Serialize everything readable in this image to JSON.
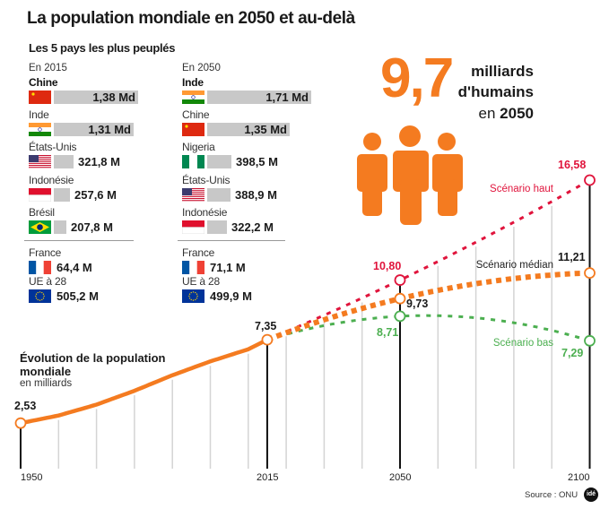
{
  "title": "La population mondiale en 2050 et au-delà",
  "subtitle": "Les 5 pays les plus peuplés",
  "col2015": {
    "heading": "En 2015",
    "countries": [
      {
        "name": "Chine",
        "value": "1,38 Md",
        "millions": 1380,
        "flag": "china"
      },
      {
        "name": "Inde",
        "value": "1,31 Md",
        "millions": 1310,
        "flag": "india"
      },
      {
        "name": "États-Unis",
        "value": "321,8 M",
        "millions": 321.8,
        "flag": "usa"
      },
      {
        "name": "Indonésie",
        "value": "257,6 M",
        "millions": 257.6,
        "flag": "indonesia"
      },
      {
        "name": "Brésil",
        "value": "207,8 M",
        "millions": 207.8,
        "flag": "brazil"
      }
    ],
    "france": {
      "name": "France",
      "value": "64,4 M"
    },
    "eu": {
      "name": "UE à 28",
      "value": "505,2 M"
    }
  },
  "col2050": {
    "heading": "En 2050",
    "countries": [
      {
        "name": "Inde",
        "value": "1,71 Md",
        "millions": 1710,
        "flag": "india"
      },
      {
        "name": "Chine",
        "value": "1,35 Md",
        "millions": 1350,
        "flag": "china"
      },
      {
        "name": "Nigeria",
        "value": "398,5 M",
        "millions": 398.5,
        "flag": "nigeria"
      },
      {
        "name": "États-Unis",
        "value": "388,9 M",
        "millions": 388.9,
        "flag": "usa"
      },
      {
        "name": "Indonésie",
        "value": "322,2 M",
        "millions": 322.2,
        "flag": "indonesia"
      }
    ],
    "france": {
      "name": "France",
      "value": "71,1 M"
    },
    "eu": {
      "name": "UE à 28",
      "value": "499,9 M"
    }
  },
  "highlight": {
    "number": "9,7",
    "line1": "milliards",
    "line2": "d'humains",
    "line3_pre": "en ",
    "line3_year": "2050",
    "icon": "people-icon"
  },
  "colors": {
    "orange": "#f47b20",
    "red": "#e0143c",
    "green": "#4caf50",
    "bar": "#c8c8c8"
  },
  "chart_data": {
    "type": "line",
    "title": "Évolution de la population mondiale",
    "ylabel": "en milliards",
    "x_ticks": [
      "1950",
      "2015",
      "2050",
      "2100"
    ],
    "ylim": [
      0,
      17
    ],
    "grid": "vertical every 10 years",
    "history": {
      "x": [
        1950,
        1960,
        1970,
        1980,
        1990,
        2000,
        2010,
        2015
      ],
      "y": [
        2.53,
        2.97,
        3.6,
        4.4,
        5.3,
        6.1,
        6.8,
        7.35
      ]
    },
    "series": [
      {
        "name": "Scénario haut",
        "x": [
          2015,
          2050,
          2100
        ],
        "y": [
          7.35,
          10.8,
          16.58
        ],
        "color": "#e0143c"
      },
      {
        "name": "Scénario médian",
        "x": [
          2015,
          2050,
          2100
        ],
        "y": [
          7.35,
          9.73,
          11.21
        ],
        "color": "#f47b20"
      },
      {
        "name": "Scénario bas",
        "x": [
          2015,
          2050,
          2100
        ],
        "y": [
          7.35,
          8.71,
          7.29
        ],
        "color": "#4caf50"
      }
    ],
    "labels": {
      "v1950": "2,53",
      "v2015": "7,35",
      "high2050": "10,80",
      "med2050": "9,73",
      "low2050": "8,71",
      "high2100": "16,58",
      "med2100": "11,21",
      "low2100": "7,29"
    }
  },
  "source": "Source : ONU",
  "logo": "idé"
}
